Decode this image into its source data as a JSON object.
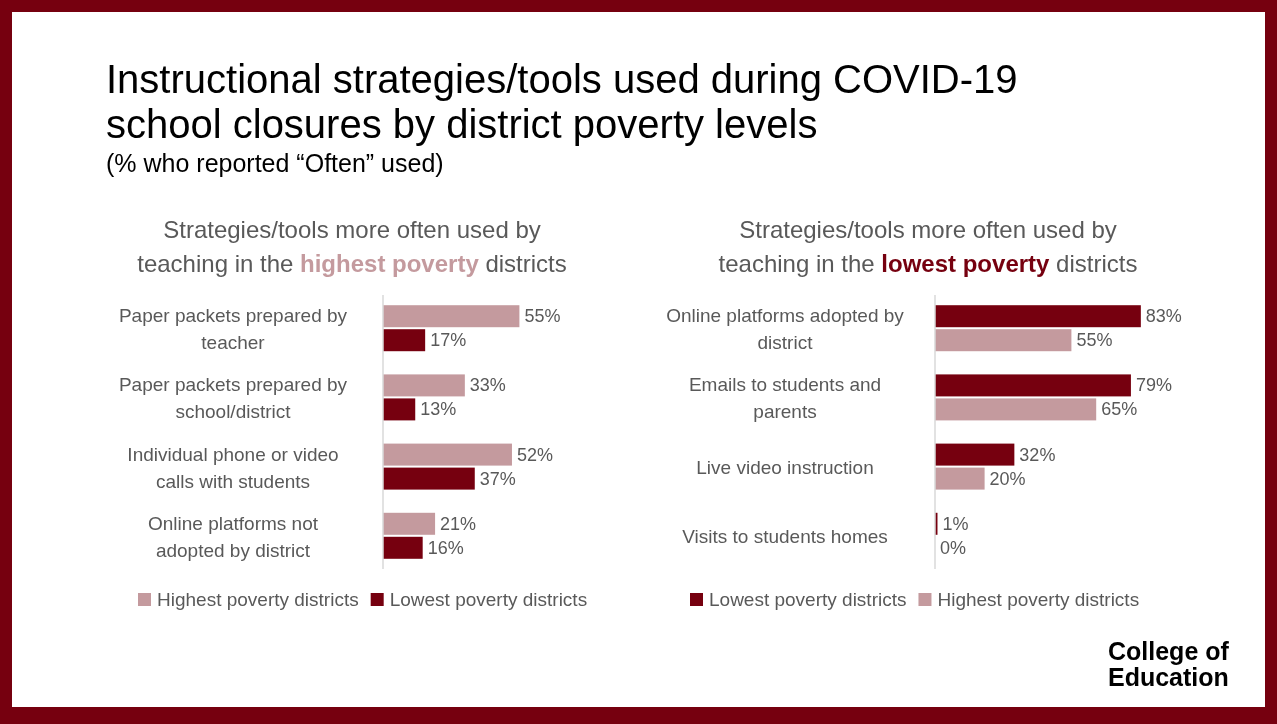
{
  "chart_data": [
    {
      "type": "bar",
      "orientation": "horizontal",
      "title": "Instructional strategies/tools used during COVID-19 school closures by district poverty levels",
      "subtitle": "(% who reported “Often” used)",
      "annotations": [
        "Strategies/tools more often used by",
        "teaching in the",
        "highest poverty",
        "districts"
      ],
      "categories": [
        "Paper packets prepared by teacher",
        "Paper packets prepared by school/district",
        "Individual phone or video calls with students",
        "Online platforms not adopted by district"
      ],
      "tick_labels": "y",
      "legend": "bottom",
      "grid": false,
      "series": [
        {
          "name": "Highest poverty districts",
          "color": "#c49a9e",
          "values": [
            55,
            33,
            52,
            21
          ],
          "value_labels": [
            "55%",
            "33%",
            "52%",
            "21%"
          ]
        },
        {
          "name": "Lowest poverty districts",
          "color": "#76000f",
          "values": [
            17,
            13,
            37,
            16
          ],
          "value_labels": [
            "17%",
            "13%",
            "37%",
            "16%"
          ]
        }
      ]
    },
    {
      "type": "bar",
      "orientation": "horizontal",
      "annotations": [
        "Strategies/tools more often used by",
        "teaching in the",
        "lowest poverty",
        "districts",
        "College of Education"
      ],
      "categories": [
        "Online platforms adopted by district",
        "Emails to students and parents",
        "Live video instruction",
        "Visits to students homes"
      ],
      "tick_labels": "y",
      "legend": "bottom",
      "grid": false,
      "series": [
        {
          "name": "Lowest poverty districts",
          "color": "#76000f",
          "values": [
            83,
            79,
            32,
            1
          ],
          "value_labels": [
            "83%",
            "79%",
            "32%",
            "1%"
          ]
        },
        {
          "name": "Highest poverty districts",
          "color": "#c49a9e",
          "values": [
            55,
            65,
            20,
            0
          ],
          "value_labels": [
            "55%",
            "65%",
            "20%",
            "0%"
          ]
        }
      ]
    }
  ]
}
